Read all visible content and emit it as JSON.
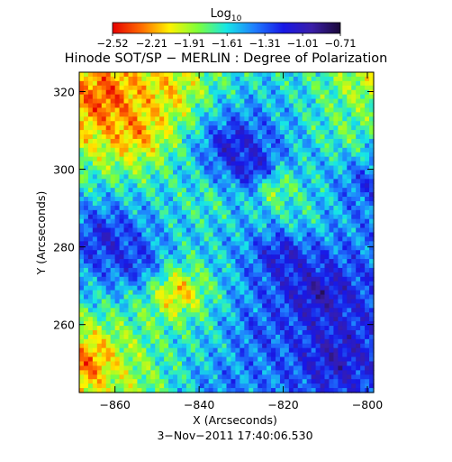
{
  "chart_data": {
    "type": "heatmap",
    "title": "Hinode SOT/SP − MERLIN : Degree of Polarization",
    "xlabel": "X (Arcseconds)",
    "ylabel": "Y (Arcseconds)",
    "timestamp": "3−Nov−2011 17:40:06.530",
    "xlim": [
      -868.5,
      -798.5
    ],
    "ylim": [
      242.5,
      325
    ],
    "x_ticks": [
      {
        "value": -860,
        "label": "−860"
      },
      {
        "value": -840,
        "label": "−840"
      },
      {
        "value": -820,
        "label": "−820"
      },
      {
        "value": -800,
        "label": "−800"
      }
    ],
    "y_ticks": [
      {
        "value": 260,
        "label": "260"
      },
      {
        "value": 280,
        "label": "280"
      },
      {
        "value": 300,
        "label": "300"
      },
      {
        "value": 320,
        "label": "320"
      }
    ],
    "grid": false,
    "colorbar": {
      "label_main": "Log",
      "label_sub": "10",
      "placement": "top",
      "colormap": [
        "#e60000",
        "#ff6a00",
        "#fff200",
        "#7cff3a",
        "#16e6e6",
        "#1f7cff",
        "#1818e6",
        "#3a1ea8",
        "#1a0838"
      ],
      "range": [
        -2.52,
        -0.71
      ],
      "ticks": [
        {
          "value": -2.52,
          "label": "−2.52"
        },
        {
          "value": -2.21,
          "label": "−2.21"
        },
        {
          "value": -1.91,
          "label": "−1.91"
        },
        {
          "value": -1.61,
          "label": "−1.61"
        },
        {
          "value": -1.31,
          "label": "−1.31"
        },
        {
          "value": -1.01,
          "label": "−1.01"
        },
        {
          "value": -0.71,
          "label": "−0.71"
        }
      ]
    },
    "field_regions": [
      {
        "x": -855,
        "y": 310,
        "level": -2.3
      },
      {
        "x": -862,
        "y": 318,
        "level": -2.45
      },
      {
        "x": -848,
        "y": 320,
        "level": -2.15
      },
      {
        "x": -832,
        "y": 306,
        "level": -0.95
      },
      {
        "x": -827,
        "y": 300,
        "level": -0.85
      },
      {
        "x": -805,
        "y": 310,
        "level": -1.8
      },
      {
        "x": -800,
        "y": 322,
        "level": -2.0
      },
      {
        "x": -862,
        "y": 282,
        "level": -1.05
      },
      {
        "x": -855,
        "y": 276,
        "level": -1.1
      },
      {
        "x": -822,
        "y": 295,
        "level": -2.1
      },
      {
        "x": -838,
        "y": 292,
        "level": -1.75
      },
      {
        "x": -845,
        "y": 268,
        "level": -2.35
      },
      {
        "x": -840,
        "y": 256,
        "level": -1.6
      },
      {
        "x": -820,
        "y": 278,
        "level": -0.95
      },
      {
        "x": -812,
        "y": 268,
        "level": -0.9
      },
      {
        "x": -808,
        "y": 252,
        "level": -1.0
      },
      {
        "x": -826,
        "y": 258,
        "level": -1.25
      },
      {
        "x": -866,
        "y": 250,
        "level": -2.4
      },
      {
        "x": -858,
        "y": 245,
        "level": -1.9
      },
      {
        "x": -834,
        "y": 245,
        "level": -1.35
      },
      {
        "x": -800,
        "y": 296,
        "level": -1.2
      },
      {
        "x": -816,
        "y": 288,
        "level": -1.7
      }
    ]
  }
}
